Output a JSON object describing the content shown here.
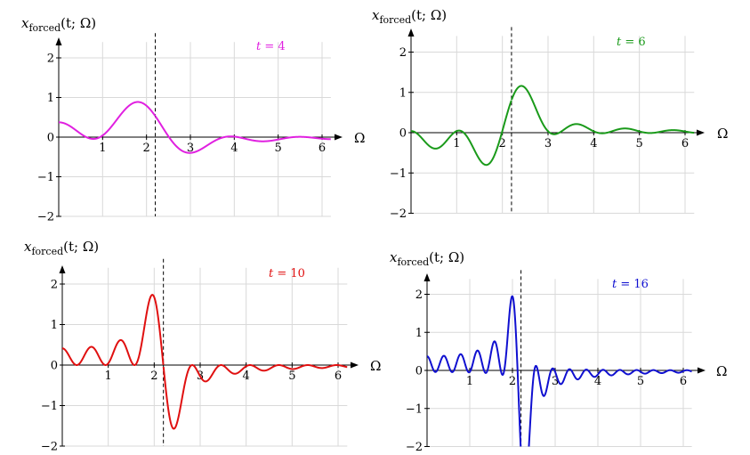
{
  "chart_data": [
    {
      "type": "line",
      "t": 4,
      "annotation": "t = 4",
      "color": "#e020e0",
      "ylabel": "x_forced(t; Ω)",
      "xlabel": "Ω",
      "xlim": [
        0,
        6.2
      ],
      "ylim": [
        -2,
        2.4
      ],
      "xticks": [
        1,
        2,
        3,
        4,
        5,
        6
      ],
      "yticks": [
        -2,
        -1,
        0,
        1,
        2
      ],
      "xtick_labels": [
        "1",
        "2",
        "3",
        "4",
        "5",
        "6"
      ],
      "ytick_labels": [
        "−2",
        "−1",
        "0",
        "1",
        "2"
      ],
      "asymptote": 2.2,
      "grid": true
    },
    {
      "type": "line",
      "t": 6,
      "annotation": "t = 6",
      "color": "#1a9a1a",
      "ylabel": "x_forced(t; Ω)",
      "xlabel": "Ω",
      "xlim": [
        0,
        6.2
      ],
      "ylim": [
        -2,
        2.4
      ],
      "xticks": [
        1,
        2,
        3,
        4,
        5,
        6
      ],
      "yticks": [
        -2,
        -1,
        0,
        1,
        2
      ],
      "xtick_labels": [
        "1",
        "2",
        "3",
        "4",
        "5",
        "6"
      ],
      "ytick_labels": [
        "−2",
        "−1",
        "0",
        "1",
        "2"
      ],
      "asymptote": 2.2,
      "grid": true
    },
    {
      "type": "line",
      "t": 10,
      "annotation": "t = 10",
      "color": "#e01010",
      "ylabel": "x_forced(t; Ω)",
      "xlabel": "Ω",
      "xlim": [
        0,
        6.2
      ],
      "ylim": [
        -2,
        2.4
      ],
      "xticks": [
        1,
        2,
        3,
        4,
        5,
        6
      ],
      "yticks": [
        -2,
        -1,
        0,
        1,
        2
      ],
      "xtick_labels": [
        "1",
        "2",
        "3",
        "4",
        "5",
        "6"
      ],
      "ytick_labels": [
        "−2",
        "−1",
        "0",
        "1",
        "2"
      ],
      "asymptote": 2.2,
      "grid": true
    },
    {
      "type": "line",
      "t": 16,
      "annotation": "t = 16",
      "color": "#1010d0",
      "ylabel": "x_forced(t; Ω)",
      "xlabel": "Ω",
      "xlim": [
        0,
        6.2
      ],
      "ylim": [
        -2,
        2.4
      ],
      "xticks": [
        1,
        2,
        3,
        4,
        5,
        6
      ],
      "yticks": [
        -2,
        -1,
        0,
        1,
        2
      ],
      "xtick_labels": [
        "1",
        "2",
        "3",
        "4",
        "5",
        "6"
      ],
      "ytick_labels": [
        "−2",
        "−1",
        "0",
        "1",
        "2"
      ],
      "asymptote": 2.2,
      "grid": true
    }
  ]
}
